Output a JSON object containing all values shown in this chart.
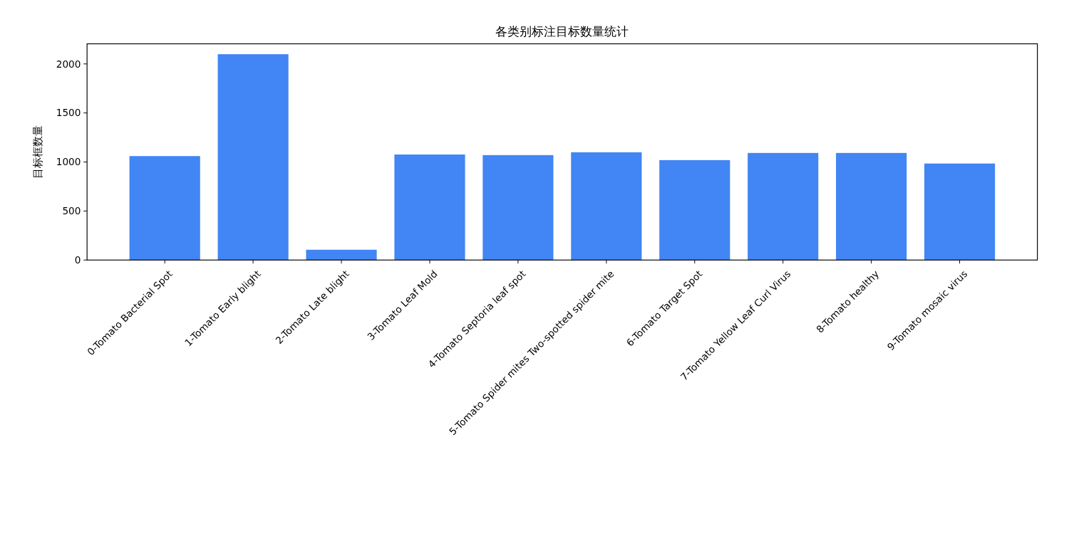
{
  "chart_data": {
    "type": "bar",
    "title": "各类别标注目标数量统计",
    "ylabel": "目标框数量",
    "categories": [
      "0-Tomato Bacterial Spot",
      "1-Tomato Early blight",
      "2-Tomato Late blight",
      "3-Tomato Leaf Mold",
      "4-Tomato Septoria leaf spot",
      "5-Tomato Spider mites Two-spotted spider mite",
      "6-Tomato Target Spot",
      "7-Tomato Yellow Leaf Curl Virus",
      "8-Tomato healthy",
      "9-Tomato mosaic virus"
    ],
    "values": [
      1060,
      2099,
      105,
      1076,
      1070,
      1099,
      1019,
      1092,
      1092,
      984
    ],
    "color": "#4285f4",
    "ylim": [
      0,
      2205
    ],
    "yticks": [
      0,
      500,
      1000,
      1500,
      2000
    ]
  }
}
